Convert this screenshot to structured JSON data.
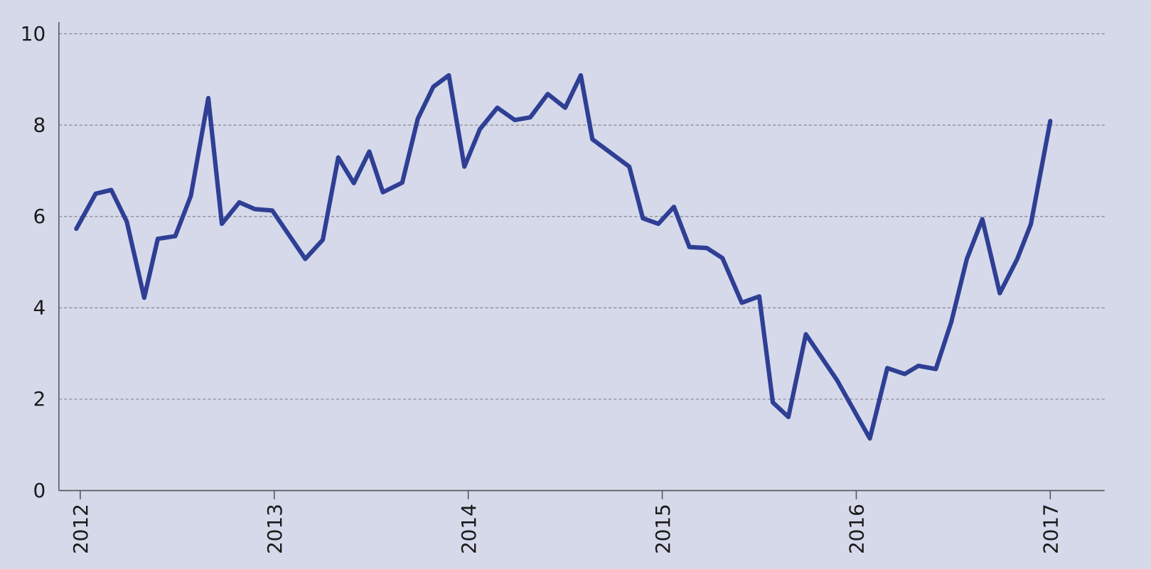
{
  "chart_data": {
    "type": "line",
    "x": [
      2011.98,
      2012.08,
      2012.16,
      2012.24,
      2012.33,
      2012.4,
      2012.49,
      2012.57,
      2012.66,
      2012.73,
      2012.82,
      2012.9,
      2012.99,
      2013.16,
      2013.25,
      2013.33,
      2013.41,
      2013.49,
      2013.56,
      2013.66,
      2013.74,
      2013.82,
      2013.9,
      2013.98,
      2014.06,
      2014.15,
      2014.24,
      2014.32,
      2014.41,
      2014.5,
      2014.58,
      2014.64,
      2014.83,
      2014.9,
      2014.98,
      2015.06,
      2015.14,
      2015.23,
      2015.31,
      2015.41,
      2015.5,
      2015.57,
      2015.65,
      2015.74,
      2015.9,
      2016.07,
      2016.16,
      2016.25,
      2016.32,
      2016.41,
      2016.49,
      2016.57,
      2016.65,
      2016.74,
      2016.83,
      2016.9,
      2017.0
    ],
    "values": [
      5.73,
      6.5,
      6.58,
      5.89,
      4.22,
      5.51,
      5.57,
      6.45,
      8.59,
      5.84,
      6.31,
      6.16,
      6.13,
      5.07,
      5.49,
      7.29,
      6.73,
      7.42,
      6.53,
      6.74,
      8.14,
      8.84,
      9.09,
      7.09,
      7.91,
      8.38,
      8.11,
      8.17,
      8.68,
      8.38,
      9.09,
      7.69,
      7.09,
      5.96,
      5.84,
      6.21,
      5.33,
      5.31,
      5.09,
      4.11,
      4.25,
      1.93,
      1.61,
      3.42,
      2.42,
      1.14,
      2.68,
      2.55,
      2.73,
      2.66,
      3.69,
      5.07,
      5.94,
      4.32,
      5.07,
      5.83,
      8.09
    ],
    "color": "#2e3f94",
    "xlim": [
      2011.89,
      2017.28
    ],
    "xticks": [
      2012,
      2013,
      2014,
      2015,
      2016,
      2017
    ],
    "ylim": [
      0,
      10
    ],
    "yticks": [
      0,
      2,
      4,
      6,
      8,
      10
    ],
    "grid": true
  }
}
